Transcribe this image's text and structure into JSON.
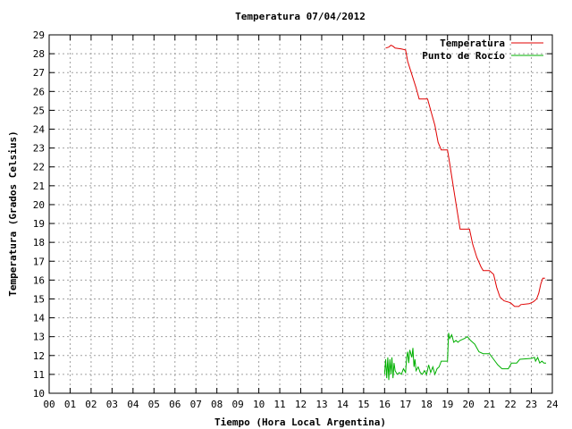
{
  "chart_data": {
    "type": "line",
    "title": "Temperatura 07/04/2012",
    "xlabel": "Tiempo (Hora Local Argentina)",
    "ylabel": "Temperatura (Grados Celsius)",
    "xlim": [
      0,
      24
    ],
    "ylim": [
      10,
      29
    ],
    "x_ticks": [
      "00",
      "01",
      "02",
      "03",
      "04",
      "05",
      "06",
      "07",
      "08",
      "09",
      "10",
      "11",
      "12",
      "13",
      "14",
      "15",
      "16",
      "17",
      "18",
      "19",
      "20",
      "21",
      "22",
      "23",
      "24"
    ],
    "y_ticks": [
      "10",
      "11",
      "12",
      "13",
      "14",
      "15",
      "16",
      "17",
      "18",
      "19",
      "20",
      "21",
      "22",
      "23",
      "24",
      "25",
      "26",
      "27",
      "28",
      "29"
    ],
    "grid": true,
    "legend_position": "top-right",
    "series": [
      {
        "name": "Temperatura",
        "color": "#e00000",
        "points": [
          [
            16.05,
            28.3
          ],
          [
            16.2,
            28.35
          ],
          [
            16.3,
            28.45
          ],
          [
            16.4,
            28.4
          ],
          [
            16.5,
            28.3
          ],
          [
            16.8,
            28.25
          ],
          [
            17.0,
            28.2
          ],
          [
            17.1,
            27.6
          ],
          [
            17.3,
            26.9
          ],
          [
            17.5,
            26.2
          ],
          [
            17.65,
            25.6
          ],
          [
            17.9,
            25.6
          ],
          [
            18.05,
            25.6
          ],
          [
            18.2,
            25.0
          ],
          [
            18.4,
            24.2
          ],
          [
            18.55,
            23.3
          ],
          [
            18.7,
            22.9
          ],
          [
            19.0,
            22.9
          ],
          [
            19.1,
            22.2
          ],
          [
            19.3,
            20.8
          ],
          [
            19.5,
            19.4
          ],
          [
            19.6,
            18.7
          ],
          [
            19.8,
            18.7
          ],
          [
            20.05,
            18.7
          ],
          [
            20.2,
            17.9
          ],
          [
            20.4,
            17.2
          ],
          [
            20.6,
            16.7
          ],
          [
            20.7,
            16.5
          ],
          [
            21.0,
            16.5
          ],
          [
            21.2,
            16.3
          ],
          [
            21.35,
            15.6
          ],
          [
            21.5,
            15.1
          ],
          [
            21.7,
            14.9
          ],
          [
            22.0,
            14.8
          ],
          [
            22.2,
            14.6
          ],
          [
            22.4,
            14.6
          ],
          [
            22.5,
            14.7
          ],
          [
            22.9,
            14.75
          ],
          [
            23.1,
            14.85
          ],
          [
            23.25,
            15.0
          ],
          [
            23.35,
            15.3
          ],
          [
            23.45,
            15.8
          ],
          [
            23.55,
            16.1
          ],
          [
            23.65,
            16.1
          ]
        ]
      },
      {
        "name": "Punto de Rocío",
        "color": "#00b000",
        "points": [
          [
            16.0,
            11.0
          ],
          [
            16.05,
            11.8
          ],
          [
            16.1,
            10.8
          ],
          [
            16.15,
            11.9
          ],
          [
            16.2,
            10.7
          ],
          [
            16.25,
            11.8
          ],
          [
            16.3,
            11.0
          ],
          [
            16.35,
            11.9
          ],
          [
            16.4,
            10.8
          ],
          [
            16.45,
            11.6
          ],
          [
            16.5,
            11.2
          ],
          [
            16.6,
            11.0
          ],
          [
            16.7,
            11.1
          ],
          [
            16.8,
            11.0
          ],
          [
            16.9,
            11.3
          ],
          [
            17.0,
            11.1
          ],
          [
            17.05,
            11.9
          ],
          [
            17.1,
            12.2
          ],
          [
            17.15,
            11.6
          ],
          [
            17.2,
            12.3
          ],
          [
            17.3,
            11.9
          ],
          [
            17.35,
            12.4
          ],
          [
            17.4,
            11.4
          ],
          [
            17.45,
            11.8
          ],
          [
            17.5,
            11.2
          ],
          [
            17.6,
            11.4
          ],
          [
            17.7,
            11.1
          ],
          [
            17.8,
            11.0
          ],
          [
            17.9,
            11.2
          ],
          [
            18.0,
            11.0
          ],
          [
            18.1,
            11.5
          ],
          [
            18.2,
            11.1
          ],
          [
            18.3,
            11.4
          ],
          [
            18.4,
            11.0
          ],
          [
            18.5,
            11.3
          ],
          [
            18.6,
            11.4
          ],
          [
            18.7,
            11.7
          ],
          [
            18.9,
            11.7
          ],
          [
            19.0,
            11.7
          ],
          [
            19.05,
            13.2
          ],
          [
            19.1,
            12.9
          ],
          [
            19.2,
            13.1
          ],
          [
            19.3,
            12.7
          ],
          [
            19.4,
            12.8
          ],
          [
            19.5,
            12.7
          ],
          [
            19.6,
            12.8
          ],
          [
            19.8,
            12.9
          ],
          [
            19.95,
            13.0
          ],
          [
            20.1,
            12.8
          ],
          [
            20.3,
            12.6
          ],
          [
            20.5,
            12.2
          ],
          [
            20.7,
            12.1
          ],
          [
            21.0,
            12.1
          ],
          [
            21.2,
            11.8
          ],
          [
            21.4,
            11.5
          ],
          [
            21.6,
            11.3
          ],
          [
            21.9,
            11.3
          ],
          [
            22.05,
            11.6
          ],
          [
            22.2,
            11.6
          ],
          [
            22.3,
            11.6
          ],
          [
            22.45,
            11.8
          ],
          [
            23.0,
            11.85
          ],
          [
            23.15,
            11.9
          ],
          [
            23.2,
            11.7
          ],
          [
            23.3,
            11.9
          ],
          [
            23.4,
            11.6
          ],
          [
            23.5,
            11.7
          ],
          [
            23.6,
            11.6
          ],
          [
            23.7,
            11.6
          ]
        ]
      }
    ]
  }
}
